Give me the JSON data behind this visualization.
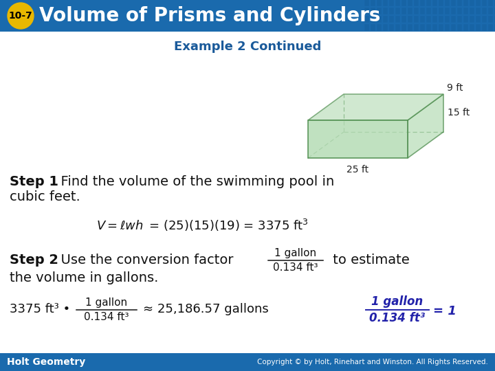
{
  "title_badge": "10-7",
  "title_text": "Volume of Prisms and Cylinders",
  "subtitle": "Example 2 Continued",
  "header_bg_color": "#1a6aad",
  "header_text_color": "#ffffff",
  "badge_bg_color": "#e8b800",
  "badge_text_color": "#000000",
  "body_bg_color": "#ffffff",
  "footer_bg_color": "#1a6aad",
  "footer_left": "Holt Geometry",
  "footer_right": "Copyright © by Holt, Rinehart and Winston. All Rights Reserved.",
  "subtitle_color": "#1a5a9a",
  "prism_face_color": "#b8ddb8",
  "prism_edge_color": "#4a8a4a",
  "prism_dim_25": "25 ft",
  "prism_dim_15": "15 ft",
  "prism_dim_9": "9 ft",
  "sidebar_color": "#2222aa"
}
